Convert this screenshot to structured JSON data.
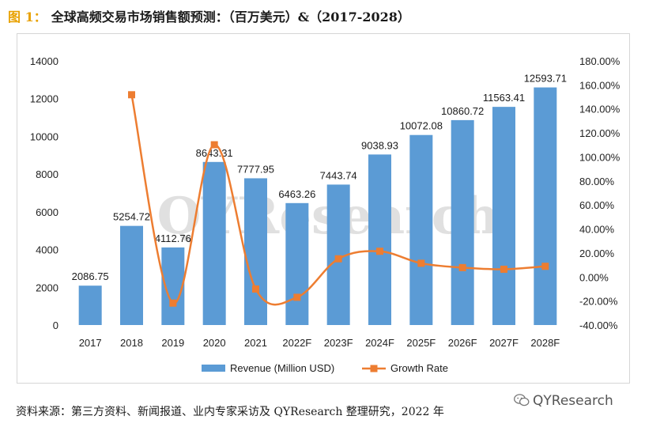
{
  "header": {
    "figure_label": "图 1：",
    "title": "全球高频交易市场销售额预测：（百万美元）&（2017-2028）"
  },
  "footer": {
    "source": "资料来源：第三方资料、新闻报道、业内专家采访及 QYResearch 整理研究，2022 年",
    "brand": "QYResearch"
  },
  "watermark": "QYResearch",
  "colors": {
    "bar": "#5b9bd5",
    "line": "#ed7d31",
    "axis_text": "#1f1f1f"
  },
  "chart_data": {
    "type": "bar",
    "title": "",
    "categories": [
      "2017",
      "2018",
      "2019",
      "2020",
      "2021",
      "2022F",
      "2023F",
      "2024F",
      "2025F",
      "2026F",
      "2027F",
      "2028F"
    ],
    "series": [
      {
        "name": "Revenue (Million USD)",
        "type": "bar",
        "axis": "left",
        "values": [
          2086.75,
          5254.72,
          4112.76,
          8643.31,
          7777.95,
          6463.26,
          7443.74,
          9038.93,
          10072.08,
          10860.72,
          11563.41,
          12593.71
        ],
        "labels": [
          "2086.75",
          "5254.72",
          "4112.76",
          "8643.31",
          "7777.95",
          "6463.26",
          "7443.74",
          "9038.93",
          "10072.08",
          "10860.72",
          "11563.41",
          "12593.71"
        ]
      },
      {
        "name": "Growth Rate",
        "type": "line",
        "axis": "right",
        "values": [
          null,
          151.81,
          -21.73,
          110.16,
          -10.01,
          -16.9,
          15.17,
          21.43,
          11.43,
          7.83,
          6.47,
          8.91
        ]
      }
    ],
    "y_left": {
      "min": 0,
      "max": 14000,
      "ticks": [
        "0",
        "2000",
        "4000",
        "6000",
        "8000",
        "10000",
        "12000",
        "14000"
      ]
    },
    "y_right": {
      "min": -40,
      "max": 180,
      "ticks": [
        "-40.00%",
        "-20.00%",
        "0.00%",
        "20.00%",
        "40.00%",
        "60.00%",
        "80.00%",
        "100.00%",
        "120.00%",
        "140.00%",
        "160.00%",
        "180.00%"
      ]
    },
    "legend": {
      "position": "bottom",
      "items": [
        "Revenue (Million USD)",
        "Growth Rate"
      ]
    },
    "grid": false
  }
}
